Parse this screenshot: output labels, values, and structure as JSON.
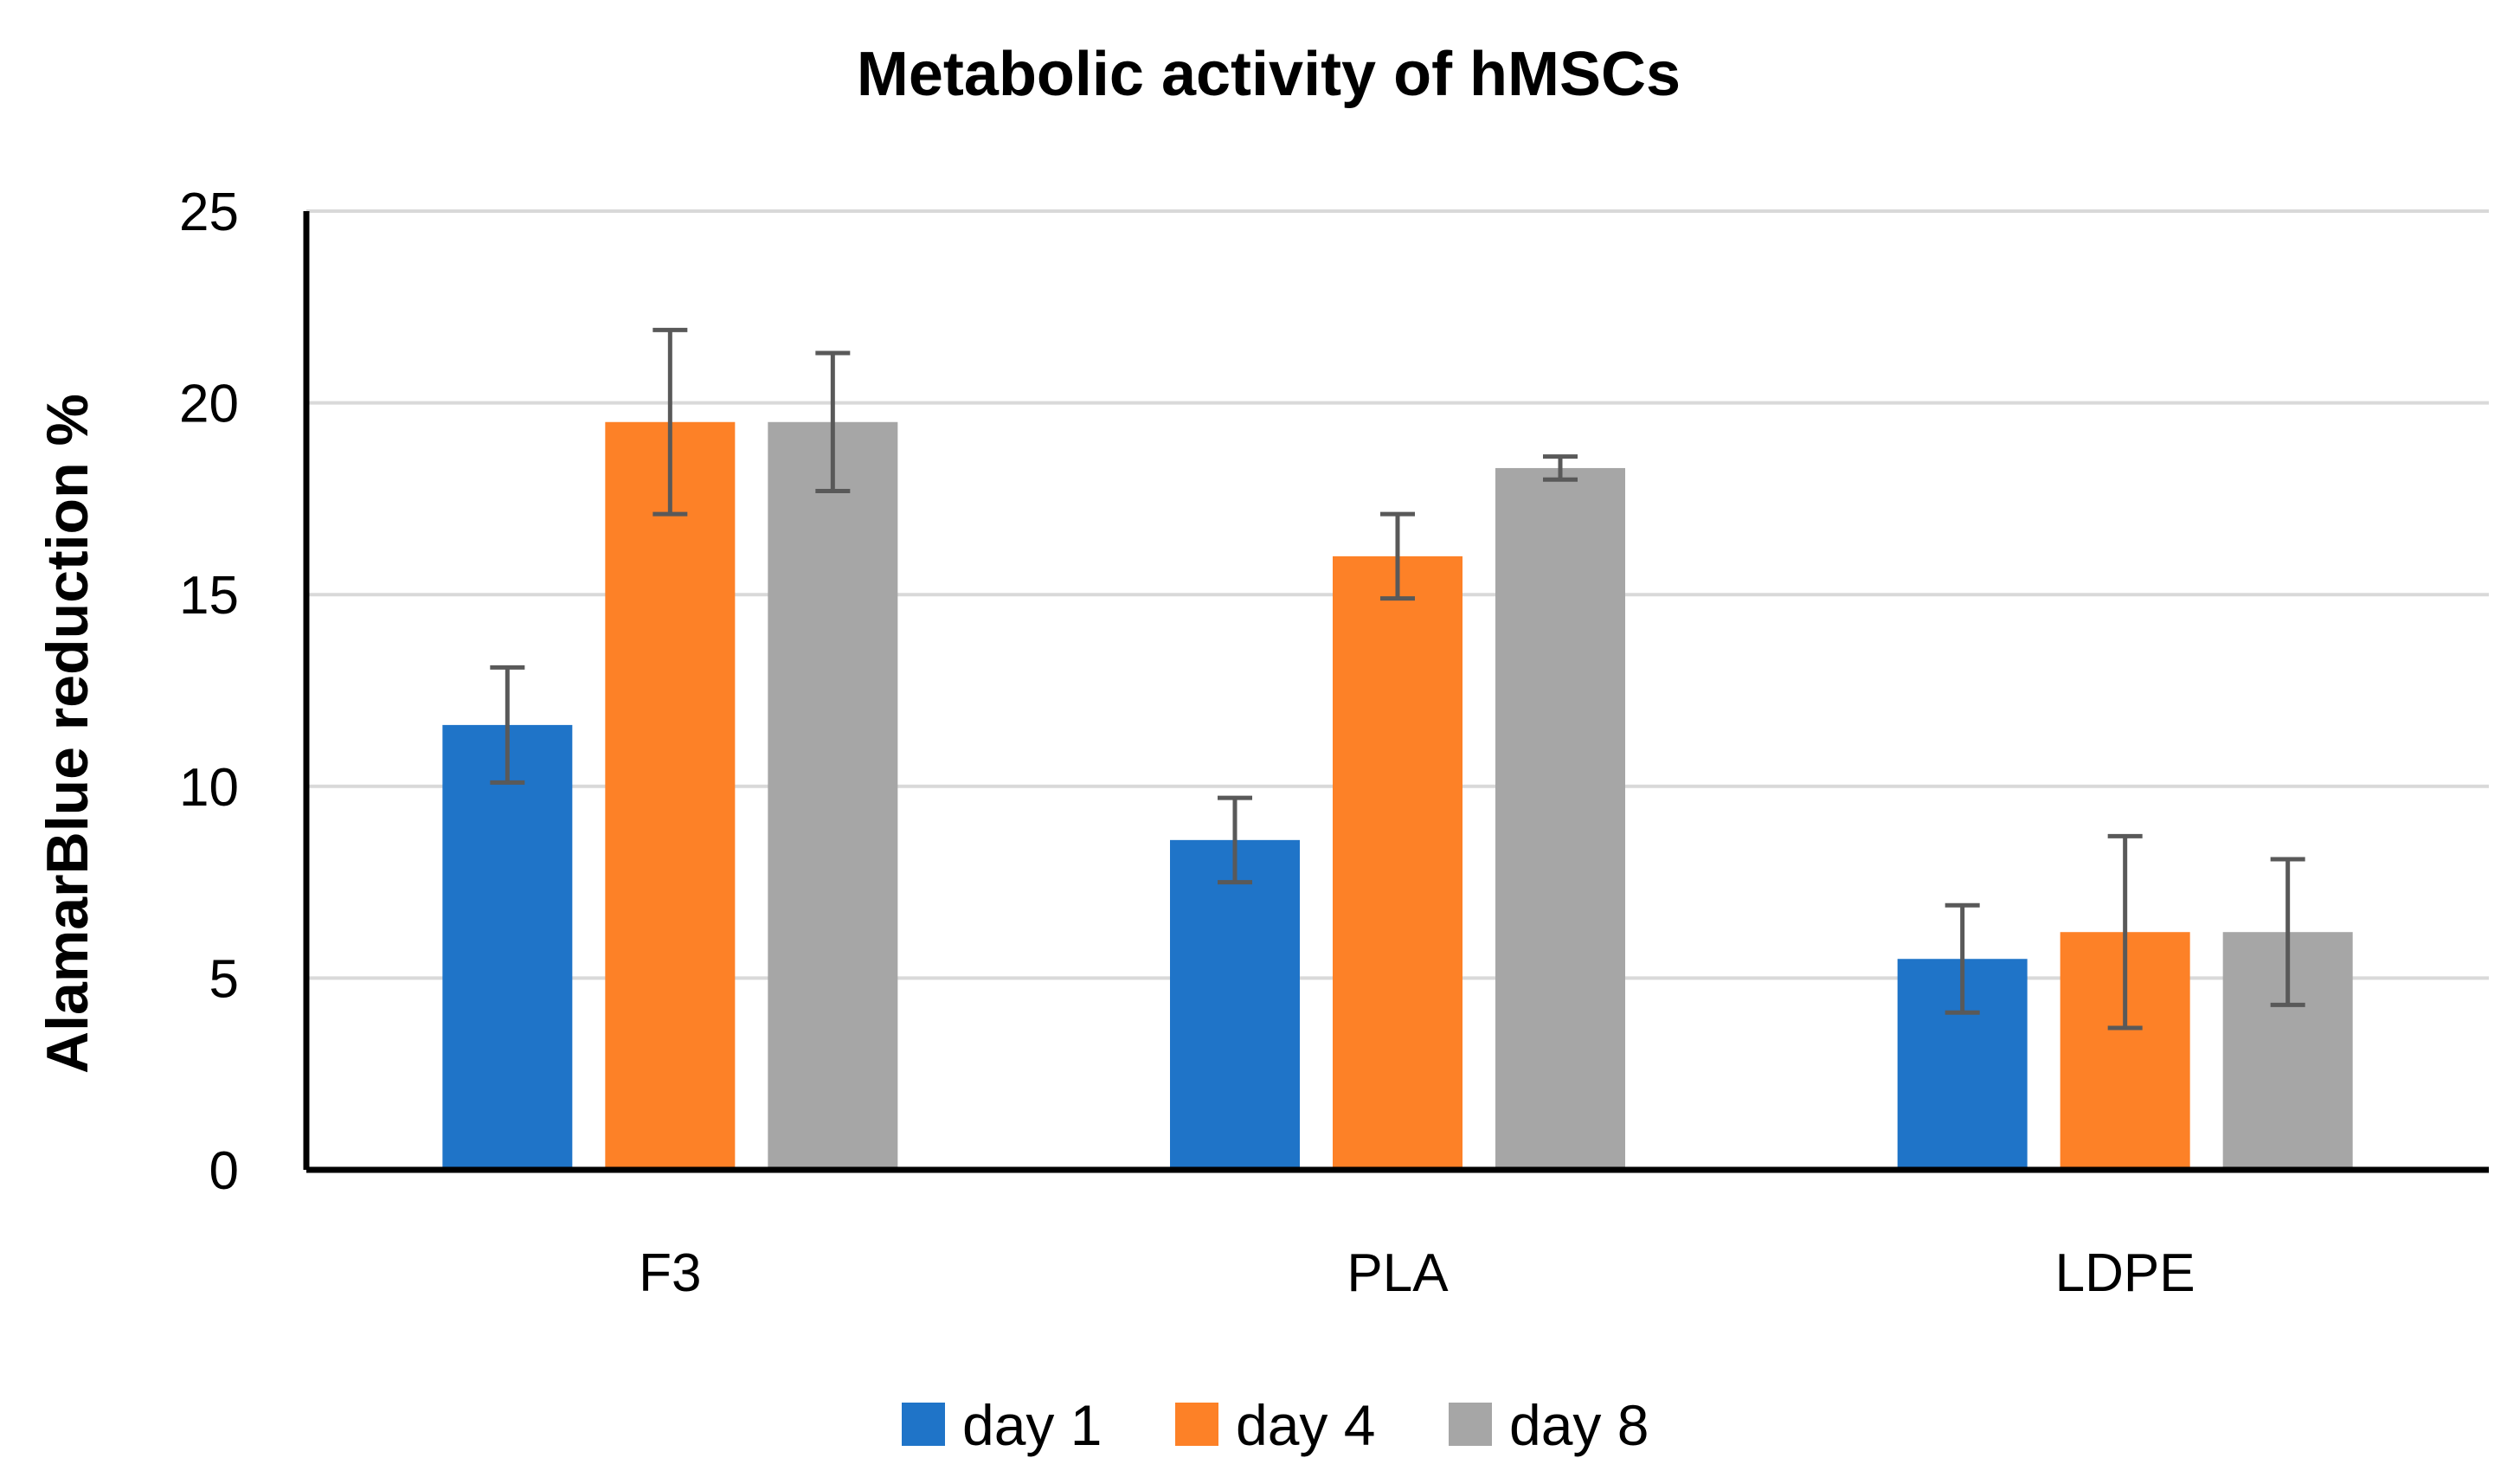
{
  "chart_data": {
    "type": "bar",
    "title": "Metabolic activity of hMSCs",
    "xlabel": "",
    "ylabel": "AlamarBlue reduction %",
    "ylim": [
      0,
      25
    ],
    "yticks": [
      0,
      5,
      10,
      15,
      20,
      25
    ],
    "grid": true,
    "legend_position": "bottom",
    "categories": [
      "F3",
      "PLA",
      "LDPE"
    ],
    "series": [
      {
        "name": "day 1",
        "color": "#1f74c8",
        "values": [
          11.6,
          8.6,
          5.5
        ],
        "errors": [
          1.5,
          1.1,
          1.4
        ]
      },
      {
        "name": "day 4",
        "color": "#fd8127",
        "values": [
          19.5,
          16.0,
          6.2
        ],
        "errors": [
          2.4,
          1.1,
          2.5
        ]
      },
      {
        "name": "day 8",
        "color": "#a6a6a6",
        "values": [
          19.5,
          18.3,
          6.2
        ],
        "errors": [
          1.8,
          0.3,
          1.9
        ]
      }
    ]
  }
}
